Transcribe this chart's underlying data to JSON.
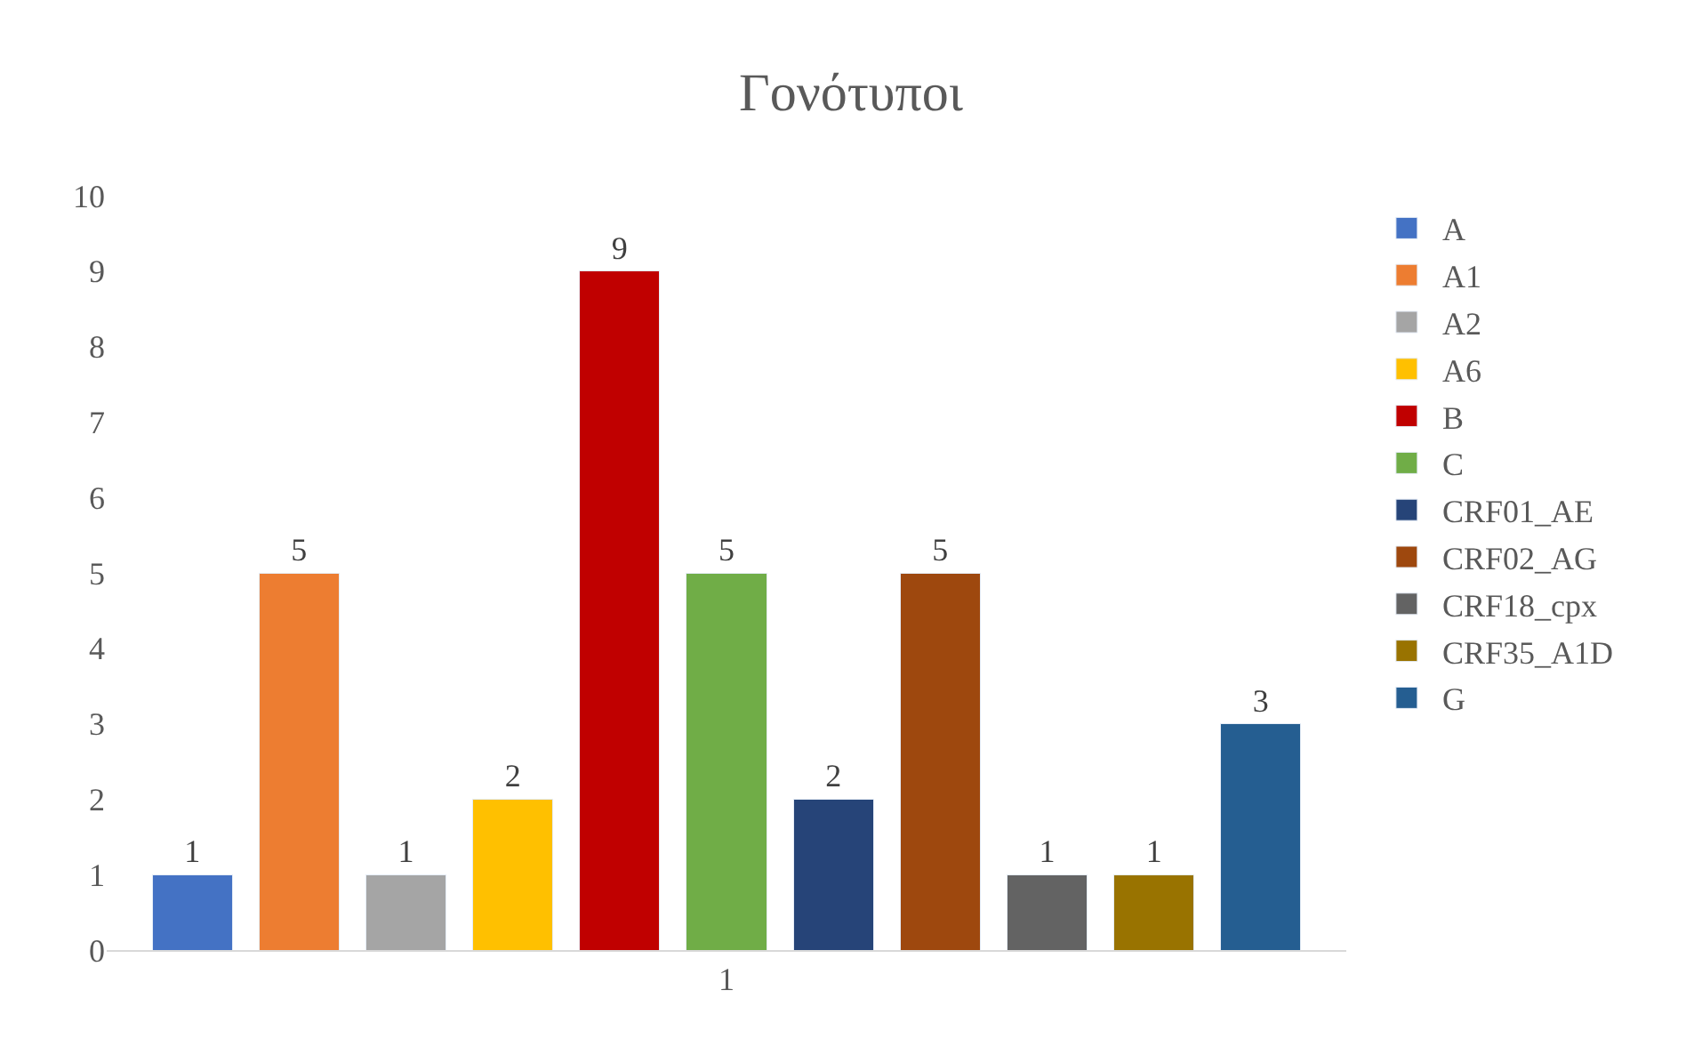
{
  "chart_data": {
    "type": "bar",
    "title": "Γονότυποι",
    "categories": [
      null,
      null,
      null,
      null,
      null,
      "1",
      null,
      null,
      null,
      null,
      null
    ],
    "stacked": true,
    "series": [
      {
        "name": "A",
        "color": "#4472c4",
        "values": [
          1,
          null,
          null,
          null,
          null,
          null,
          null,
          null,
          null,
          null,
          null
        ]
      },
      {
        "name": "A1",
        "color": "#ed7d31",
        "values": [
          null,
          5,
          null,
          null,
          null,
          null,
          null,
          null,
          null,
          null,
          null
        ]
      },
      {
        "name": "A2",
        "color": "#a5a5a5",
        "values": [
          null,
          null,
          1,
          null,
          null,
          null,
          null,
          null,
          null,
          null,
          null
        ]
      },
      {
        "name": "A6",
        "color": "#ffc000",
        "values": [
          null,
          null,
          null,
          2,
          null,
          null,
          null,
          null,
          null,
          null,
          null
        ]
      },
      {
        "name": "B",
        "color": "#c00000",
        "values": [
          null,
          null,
          null,
          null,
          9,
          null,
          null,
          null,
          null,
          null,
          null
        ]
      },
      {
        "name": "C",
        "color": "#70ad47",
        "values": [
          null,
          null,
          null,
          null,
          null,
          5,
          null,
          null,
          null,
          null,
          null
        ]
      },
      {
        "name": "CRF01_AE",
        "color": "#264478",
        "values": [
          null,
          null,
          null,
          null,
          null,
          null,
          2,
          null,
          null,
          null,
          null
        ]
      },
      {
        "name": "CRF02_AG",
        "color": "#9e480e",
        "values": [
          null,
          null,
          null,
          null,
          null,
          null,
          null,
          5,
          null,
          null,
          null
        ]
      },
      {
        "name": "CRF18_cpx",
        "color": "#636363",
        "values": [
          null,
          null,
          null,
          null,
          null,
          null,
          null,
          null,
          1,
          null,
          null
        ]
      },
      {
        "name": "CRF35_A1D",
        "color": "#997300",
        "values": [
          null,
          null,
          null,
          null,
          null,
          null,
          null,
          null,
          null,
          1,
          null
        ]
      },
      {
        "name": "G",
        "color": "#255e91",
        "values": [
          null,
          null,
          null,
          null,
          null,
          null,
          null,
          null,
          null,
          null,
          3
        ]
      }
    ],
    "ylim": [
      0,
      10
    ],
    "yticks": [
      0,
      1,
      2,
      3,
      4,
      5,
      6,
      7,
      8,
      9,
      10
    ],
    "grid": false,
    "legend": "right",
    "data_labels": true
  }
}
